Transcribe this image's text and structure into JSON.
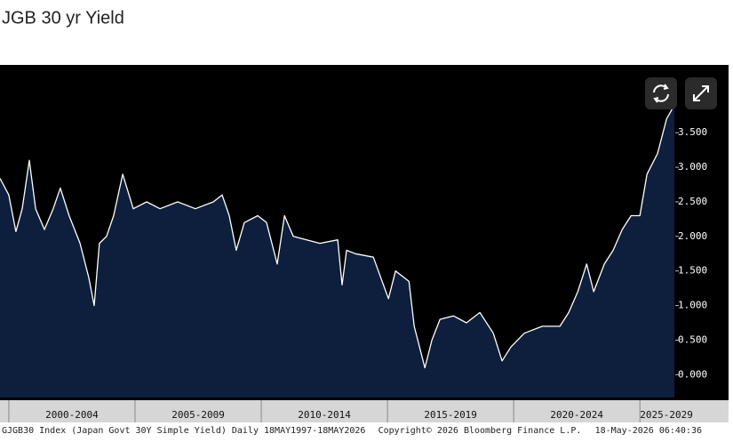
{
  "chart_data": {
    "type": "area",
    "title": "JGB 30 yr Yield",
    "x": [
      1999.65,
      2000.0,
      2000.28,
      2000.53,
      2000.81,
      2001.06,
      2001.41,
      2001.76,
      2002.04,
      2002.39,
      2002.82,
      2003.17,
      2003.38,
      2003.59,
      2003.87,
      2004.15,
      2004.51,
      2004.93,
      2005.46,
      2005.99,
      2006.69,
      2007.39,
      2008.1,
      2008.45,
      2008.73,
      2009.01,
      2009.33,
      2009.86,
      2010.21,
      2010.63,
      2010.92,
      2011.27,
      2011.8,
      2012.32,
      2013.03,
      2013.2,
      2013.38,
      2013.73,
      2014.44,
      2015.04,
      2015.32,
      2015.85,
      2016.06,
      2016.27,
      2016.48,
      2016.76,
      2017.08,
      2017.61,
      2018.13,
      2018.66,
      2019.19,
      2019.54,
      2019.89,
      2020.42,
      2021.13,
      2021.83,
      2022.18,
      2022.54,
      2022.89,
      2023.17,
      2023.59,
      2023.94,
      2024.3,
      2024.65,
      2025.0,
      2025.28,
      2025.7,
      2026.06,
      2026.37
    ],
    "values": [
      2.84,
      2.6,
      2.07,
      2.4,
      3.1,
      2.4,
      2.1,
      2.4,
      2.7,
      2.3,
      1.9,
      1.4,
      1.0,
      1.9,
      2.0,
      2.3,
      2.9,
      2.4,
      2.5,
      2.4,
      2.5,
      2.4,
      2.5,
      2.6,
      2.3,
      1.8,
      2.2,
      2.3,
      2.2,
      1.6,
      2.3,
      2.0,
      1.95,
      1.9,
      1.95,
      1.3,
      1.8,
      1.75,
      1.7,
      1.1,
      1.5,
      1.35,
      0.7,
      0.4,
      0.1,
      0.5,
      0.8,
      0.85,
      0.75,
      0.9,
      0.6,
      0.2,
      0.4,
      0.6,
      0.7,
      0.7,
      0.9,
      1.2,
      1.6,
      1.2,
      1.6,
      1.8,
      2.1,
      2.3,
      2.3,
      2.9,
      3.2,
      3.7,
      3.9
    ],
    "color": "#ffffff",
    "fill": "#0d1f3c",
    "xlim": [
      1999.65,
      2026.4
    ],
    "ylim": [
      -0.33,
      4.48
    ],
    "yticks": [
      {
        "value": 0,
        "label": "0.000"
      },
      {
        "value": 0.5,
        "label": "0.500"
      },
      {
        "value": 1,
        "label": "1.000"
      },
      {
        "value": 1.5,
        "label": "1.500"
      },
      {
        "value": 2,
        "label": "2.000"
      },
      {
        "value": 2.5,
        "label": "2.500"
      },
      {
        "value": 3,
        "label": "3.000"
      },
      {
        "value": 3.5,
        "label": "3.500"
      }
    ],
    "x_periods": [
      {
        "label": "2000-2004",
        "from": 2000,
        "to": 2005
      },
      {
        "label": "2005-2009",
        "from": 2005,
        "to": 2010
      },
      {
        "label": "2010-2014",
        "from": 2010,
        "to": 2015
      },
      {
        "label": "2015-2019",
        "from": 2015,
        "to": 2020
      },
      {
        "label": "2020-2024",
        "from": 2020,
        "to": 2025
      },
      {
        "label": "2025-2029",
        "from": 2025,
        "to": 2030
      }
    ],
    "footer": {
      "left": "GJGB30 Index (Japan Govt 30Y Simple Yield) Daily 18MAY1997-18MAY2026",
      "center": "Copyright© 2026 Bloomberg Finance L.P.",
      "right": "18-May-2026 06:40:36"
    }
  }
}
